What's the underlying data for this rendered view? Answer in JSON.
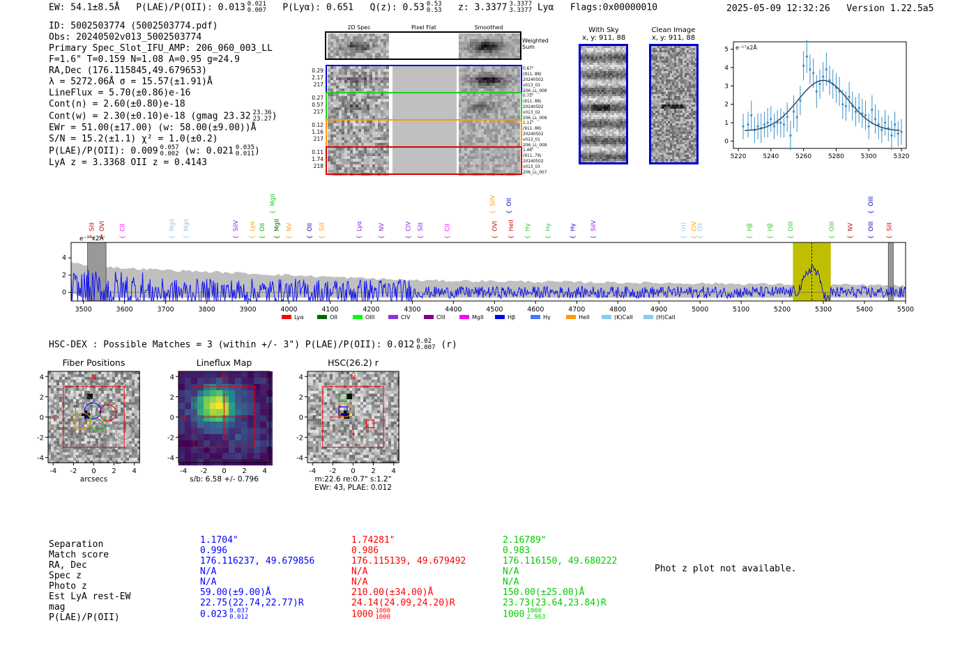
{
  "header": {
    "ew": "EW: 54.1±8.5Å",
    "plae_label": "P(LAE)/P(OII): 0.013",
    "plae_hi": "0.021",
    "plae_lo": "0.007",
    "plya": "P(Lyα): 0.651",
    "qz_label": "Q(z): 0.53",
    "qz_hi": "0.53",
    "qz_lo": "0.53",
    "z_label": "z: 3.3377",
    "z_hi": "3.3377",
    "z_lo": "3.3377",
    "line": "Lyα",
    "flags": "Flags:0x00000010",
    "datetime": "2025-05-09 12:32:26",
    "version": "Version 1.22.5a5"
  },
  "info": {
    "id": "ID: 5002503774 (5002503774.pdf)",
    "obs": "Obs: 20240502v013_5002503774",
    "primary": "Primary Spec_Slot_IFU_AMP: 206_060_003_LL",
    "fib": "F=1.6\"  T=0.159  N=1.08  A=0.95  g=24.9",
    "radec": "RA,Dec (176.115845,49.679653)",
    "lambda": "λ = 5272.06Å  σ = 15.57(±1.91)Å",
    "lineflux": "LineFlux = 5.70(±0.86)e-16",
    "contn": "Cont(n) = 2.60(±0.80)e-18",
    "contw": "Cont(w) = 2.30(±0.10)e-18 (gmag 23.32",
    "contw_hi": "23.36",
    "contw_lo": "23.27",
    "contw_end": ")",
    "ewr": "EWr = 51.00(±17.00) (w: 58.00(±9.00))Å",
    "sn": "S/N = 15.2(±1.1)  χ² = 1.0(±0.2)",
    "plae": "P(LAE)/P(OII): 0.009",
    "plae_hi": "0.057",
    "plae_lo": "0.002",
    "plae_w": "(w: 0.021",
    "plae_w_hi": "0.035",
    "plae_w_lo": "0.011",
    "plae_w_end": ")",
    "lyaz": "LyA z = 3.3368   OII z = 0.4143"
  },
  "cutouts": {
    "col_titles": [
      "2D Spec",
      "Pixel Flat",
      "Smoothed"
    ],
    "weighted": [
      "Weighted",
      "Sum"
    ],
    "rows": [
      {
        "left": [
          "0.29",
          "2.17",
          "217"
        ],
        "right": [
          "0.67\"",
          "(911, 88)",
          "20240502",
          "v013_03",
          "206_LL_008"
        ],
        "color": "#0000dd"
      },
      {
        "left": [
          "0.27",
          "0.57",
          "217"
        ],
        "right": [
          "0.75\"",
          "(911, 88)",
          "20240502",
          "v013_02",
          "206_LL_008"
        ],
        "color": "#22cc22"
      },
      {
        "left": [
          "0.12",
          "1.16",
          "217"
        ],
        "right": [
          "1.11\"",
          "(911, 88)",
          "20240502",
          "v013_01",
          "206_LL_008"
        ],
        "color": "#ff9900"
      },
      {
        "left": [
          "0.11",
          "1.74",
          "218"
        ],
        "right": [
          "1.46\"",
          "(911, 79)",
          "20240502",
          "v013_03",
          "206_LL_007"
        ],
        "color": "#dd0000"
      }
    ]
  },
  "sky": {
    "with_sky": [
      "With Sky",
      "x, y: 911, 88"
    ],
    "clean": [
      "Clean Image",
      "x, y: 911, 88"
    ]
  },
  "zoom_chart": {
    "type": "scatter",
    "ylabel": "e⁻¹⁷x2Å",
    "xlim": [
      5217,
      5323
    ],
    "ylim": [
      -0.4,
      5.4
    ],
    "xticks": [
      5220,
      5240,
      5260,
      5280,
      5300,
      5320
    ],
    "yticks": [
      0,
      1,
      2,
      3,
      4,
      5
    ],
    "points": [
      [
        5223,
        0.8,
        0.7
      ],
      [
        5226,
        0.9,
        0.7
      ],
      [
        5228,
        1.4,
        0.8
      ],
      [
        5230,
        0.6,
        0.7
      ],
      [
        5232,
        0.8,
        0.7
      ],
      [
        5234,
        0.7,
        0.8
      ],
      [
        5236,
        0.9,
        0.7
      ],
      [
        5238,
        1.0,
        0.8
      ],
      [
        5240,
        1.2,
        0.7
      ],
      [
        5242,
        0.8,
        0.7
      ],
      [
        5244,
        1.0,
        0.7
      ],
      [
        5246,
        1.0,
        0.8
      ],
      [
        5248,
        0.9,
        0.7
      ],
      [
        5250,
        1.3,
        0.8
      ],
      [
        5252,
        0.3,
        0.8
      ],
      [
        5254,
        1.6,
        0.9
      ],
      [
        5256,
        1.3,
        0.8
      ],
      [
        5258,
        2.2,
        0.8
      ],
      [
        5260,
        4.1,
        0.8
      ],
      [
        5262,
        4.6,
        0.9
      ],
      [
        5264,
        3.9,
        0.8
      ],
      [
        5266,
        3.7,
        0.8
      ],
      [
        5268,
        2.7,
        0.9
      ],
      [
        5270,
        3.1,
        0.8
      ],
      [
        5272,
        3.5,
        0.8
      ],
      [
        5274,
        3.9,
        0.9
      ],
      [
        5276,
        3.3,
        0.8
      ],
      [
        5278,
        3.1,
        0.8
      ],
      [
        5280,
        2.9,
        0.8
      ],
      [
        5282,
        2.7,
        0.8
      ],
      [
        5284,
        2.0,
        0.8
      ],
      [
        5286,
        1.9,
        0.8
      ],
      [
        5288,
        2.4,
        0.8
      ],
      [
        5290,
        1.9,
        0.8
      ],
      [
        5292,
        1.6,
        0.8
      ],
      [
        5294,
        1.8,
        0.8
      ],
      [
        5296,
        1.5,
        0.8
      ],
      [
        5298,
        1.4,
        0.8
      ],
      [
        5300,
        0.8,
        0.7
      ],
      [
        5302,
        1.7,
        0.8
      ],
      [
        5304,
        1.2,
        0.8
      ],
      [
        5306,
        0.9,
        0.8
      ],
      [
        5308,
        0.6,
        0.7
      ],
      [
        5310,
        1.0,
        0.7
      ],
      [
        5312,
        0.7,
        0.7
      ],
      [
        5314,
        0.3,
        0.8
      ],
      [
        5316,
        0.9,
        0.7
      ],
      [
        5318,
        0.4,
        0.7
      ],
      [
        5320,
        0.5,
        0.7
      ]
    ],
    "fit": {
      "amp": 2.75,
      "mu": 5272.06,
      "sigma": 15.57,
      "cont": 0.55
    }
  },
  "full_spectrum": {
    "type": "line",
    "ylabel": "e⁻¹⁷x2Å",
    "xlim": [
      3470,
      5500
    ],
    "ylim": [
      -1,
      5.8
    ],
    "xticks": [
      3500,
      3600,
      3700,
      3800,
      3900,
      4000,
      4100,
      4200,
      4300,
      4400,
      4500,
      4600,
      4700,
      4800,
      4900,
      5000,
      5100,
      5200,
      5300,
      5400,
      5500
    ],
    "yticks": [
      0,
      2,
      4
    ],
    "highlight": [
      5226,
      5318
    ],
    "center": 5272.06,
    "masks": [
      [
        3510,
        3555
      ],
      [
        5458,
        5470
      ]
    ],
    "line_labels": [
      {
        "t": "SiII",
        "w": 3520,
        "c": "#cc0000",
        "r": 1
      },
      {
        "t": "OVI",
        "w": 3545,
        "c": "#cc0000",
        "r": 1
      },
      {
        "t": "CII",
        "w": 3595,
        "c": "#ff00ff",
        "r": 1
      },
      {
        "t": "MgII",
        "w": 3715,
        "c": "#88ccee",
        "r": 1
      },
      {
        "t": "MgII",
        "w": 3750,
        "c": "#88ccee",
        "r": 1
      },
      {
        "t": "SiIV",
        "w": 3870,
        "c": "#8822cc",
        "r": 1
      },
      {
        "t": "Lyα",
        "w": 3910,
        "c": "#ff9900",
        "r": 1
      },
      {
        "t": "OII",
        "w": 3935,
        "c": "#00aa00",
        "r": 1
      },
      {
        "t": "MgII",
        "w": 3970,
        "c": "#006600",
        "r": 1
      },
      {
        "t": "NV",
        "w": 4000,
        "c": "#ff9900",
        "r": 1
      },
      {
        "t": "OII",
        "w": 4050,
        "c": "#0000cc",
        "r": 1
      },
      {
        "t": "SiII",
        "w": 4080,
        "c": "#ff9900",
        "r": 1
      },
      {
        "t": "Lyα",
        "w": 4170,
        "c": "#8822cc",
        "r": 1
      },
      {
        "t": "NV",
        "w": 4225,
        "c": "#8822cc",
        "r": 1
      },
      {
        "t": "CIV",
        "w": 4290,
        "c": "#8822cc",
        "r": 1
      },
      {
        "t": "SiII",
        "w": 4320,
        "c": "#8822cc",
        "r": 1
      },
      {
        "t": "CII",
        "w": 4385,
        "c": "#ff00ff",
        "r": 1
      },
      {
        "t": "OVI",
        "w": 4500,
        "c": "#cc0000",
        "r": 1
      },
      {
        "t": "HeII",
        "w": 4540,
        "c": "#cc0000",
        "r": 1
      },
      {
        "t": "Hγ",
        "w": 4580,
        "c": "#22cc22",
        "r": 1
      },
      {
        "t": "Hγ",
        "w": 4630,
        "c": "#22cc22",
        "r": 1
      },
      {
        "t": "Hγ",
        "w": 4690,
        "c": "#0000cc",
        "r": 1
      },
      {
        "t": "SiIV",
        "w": 4740,
        "c": "#8822cc",
        "r": 1
      },
      {
        "t": "(H)",
        "w": 4960,
        "c": "#88ccee",
        "r": 1
      },
      {
        "t": "CIV",
        "w": 4985,
        "c": "#ff9900",
        "r": 1
      },
      {
        "t": "OII",
        "w": 5000,
        "c": "#88ccee",
        "r": 1
      },
      {
        "t": "Hβ",
        "w": 5120,
        "c": "#22cc22",
        "r": 1
      },
      {
        "t": "Hβ",
        "w": 5170,
        "c": "#22cc22",
        "r": 1
      },
      {
        "t": "OIII",
        "w": 5220,
        "c": "#22cc22",
        "r": 1
      },
      {
        "t": "OIII",
        "w": 5320,
        "c": "#22cc22",
        "r": 1
      },
      {
        "t": "NV",
        "w": 5365,
        "c": "#cc0000",
        "r": 1
      },
      {
        "t": "OIII",
        "w": 5415,
        "c": "#0000cc",
        "r": 1
      },
      {
        "t": "SiII",
        "w": 5460,
        "c": "#cc0000",
        "r": 1
      },
      {
        "t": "MgII",
        "w": 3960,
        "c": "#22cc22",
        "r": 2
      },
      {
        "t": "SiIV",
        "w": 4495,
        "c": "#ff9900",
        "r": 2
      },
      {
        "t": "OII",
        "w": 4535,
        "c": "#0000cc",
        "r": 2
      },
      {
        "t": "OIII",
        "w": 5415,
        "c": "#0000cc",
        "r": 2
      }
    ],
    "legend": [
      {
        "t": "Lyα",
        "c": "#ff0000"
      },
      {
        "t": "OII",
        "c": "#006600"
      },
      {
        "t": "OIII",
        "c": "#00ff00"
      },
      {
        "t": "CIV",
        "c": "#8833dd"
      },
      {
        "t": "CIII",
        "c": "#880088"
      },
      {
        "t": "MgII",
        "c": "#ff00ff"
      },
      {
        "t": "Hβ",
        "c": "#0000ff"
      },
      {
        "t": "Hγ",
        "c": "#4477ff"
      },
      {
        "t": "HeII",
        "c": "#ff9900"
      },
      {
        "t": "(K)CaII",
        "c": "#88ccee"
      },
      {
        "t": "(H)CaII",
        "c": "#88ccee"
      }
    ]
  },
  "hsc": {
    "title": "HSC-DEX : Possible Matches = 3 (within +/- 3\")  P(LAE)/P(OII): 0.012",
    "hi": "0.02",
    "lo": "0.007",
    "band": "(r)"
  },
  "panels": [
    {
      "title": "Fiber Positions",
      "xlabel": "arcsecs",
      "sub": ""
    },
    {
      "title": "Lineflux Map",
      "xlabel": "s/b: 6.58 +/- 0.796",
      "sub": ""
    },
    {
      "title": "HSC(26.2) r",
      "xlabel": "m:22.6   re:0.7\"   s:1.2\"",
      "sub": "EWr: 43, PLAE: 0.012"
    }
  ],
  "panel_ticks": [
    "-4",
    "-2",
    "0",
    "2",
    "4"
  ],
  "compass": {
    "n": "N",
    "e": "E"
  },
  "table": {
    "labels": [
      "Separation",
      "Match score",
      "RA, Dec",
      "Spec z",
      "Photo z",
      "Est LyA rest-EW",
      "mag",
      "P(LAE)/P(OII)"
    ],
    "cols": [
      {
        "color": "#0000ff",
        "sep": "1.1704\"",
        "score": "0.996",
        "radec": "176.116237, 49.679856",
        "specz": "N/A",
        "photz": "N/A",
        "ew": "59.00(±9.00)Å",
        "mag": "22.75(22.74,22.77)R",
        "plae": "0.023",
        "hi": "0.037",
        "lo": "0.012"
      },
      {
        "color": "#ff0000",
        "sep": "1.74281\"",
        "score": "0.986",
        "radec": "176.115139, 49.679492",
        "specz": "N/A",
        "photz": "N/A",
        "ew": "210.00(±34.00)Å",
        "mag": "24.14(24.09,24.20)R",
        "plae": "1000",
        "hi": "1000",
        "lo": "1000"
      },
      {
        "color": "#00cc00",
        "sep": "2.16789\"",
        "score": "0.983",
        "radec": "176.116150, 49.680222",
        "specz": "N/A",
        "photz": "N/A",
        "ew": "150.00(±25.00)Å",
        "mag": "23.73(23.64,23.84)R",
        "plae": "1000",
        "hi": "1000",
        "lo": "2.963"
      }
    ],
    "photz_msg": "Phot z plot not available."
  },
  "colors": {
    "spectrum": "#0000ff",
    "noise": "#bfbfbf",
    "highlight": "#bfbf00",
    "fit": "#2a4a66",
    "points": "#3a8fc4"
  }
}
